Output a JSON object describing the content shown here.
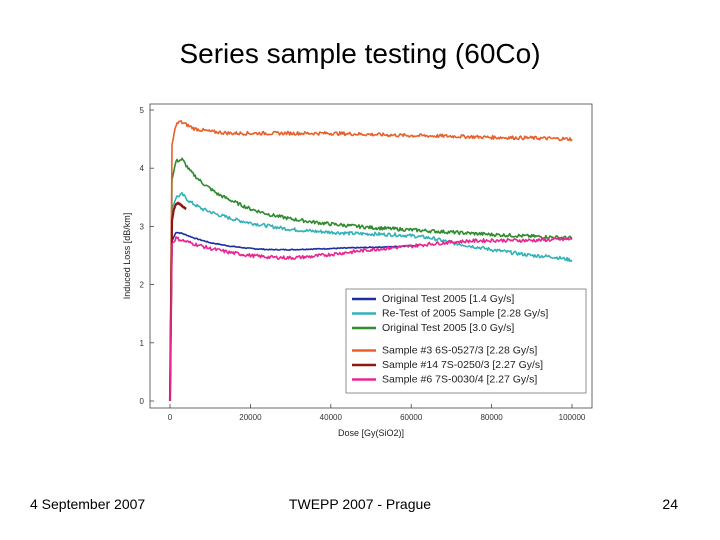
{
  "slide": {
    "title": "Series sample testing (60Co)",
    "footer_left": "4 September 2007",
    "footer_center": "TWEPP 2007 - Prague",
    "footer_right": "24"
  },
  "chart_data": {
    "type": "line",
    "xlabel": "Dose [Gy(SiO2)]",
    "ylabel": "Induced Loss [dB/km]",
    "xlim": [
      0,
      105000
    ],
    "ylim": [
      0,
      5
    ],
    "xticks": [
      0,
      20000,
      40000,
      60000,
      80000,
      100000
    ],
    "yticks": [
      0,
      1,
      2,
      3,
      4,
      5
    ],
    "legend_position": "bottom-right",
    "series": [
      {
        "name": "Original Test 2005 [1.4 Gy/s]",
        "color": "#1c2fa0",
        "x": [
          0,
          500,
          1500,
          3000,
          6000,
          10000,
          15000,
          20000,
          25000,
          30000,
          35000,
          40000,
          45000,
          50000,
          55000,
          60000,
          62000
        ],
        "y": [
          0,
          2.75,
          2.9,
          2.88,
          2.8,
          2.72,
          2.66,
          2.62,
          2.6,
          2.6,
          2.61,
          2.62,
          2.63,
          2.64,
          2.65,
          2.67,
          2.68
        ]
      },
      {
        "name": "Re-Test of 2005 Sample [2.28 Gy/s]",
        "color": "#33b2b8",
        "x": [
          0,
          500,
          1500,
          3000,
          5000,
          8000,
          12000,
          16000,
          20000,
          25000,
          30000,
          35000,
          40000,
          45000,
          50000,
          55000,
          60000,
          65000,
          70000,
          75000,
          80000,
          85000,
          90000,
          95000,
          100000
        ],
        "y": [
          0,
          3.3,
          3.5,
          3.55,
          3.42,
          3.3,
          3.2,
          3.12,
          3.06,
          3.0,
          2.95,
          2.92,
          2.9,
          2.88,
          2.87,
          2.86,
          2.84,
          2.8,
          2.72,
          2.66,
          2.6,
          2.55,
          2.5,
          2.48,
          2.42
        ]
      },
      {
        "name": "Original Test 2005 [3.0 Gy/s]",
        "color": "#2e8b2e",
        "x": [
          0,
          500,
          1500,
          3000,
          5000,
          8000,
          12000,
          16000,
          20000,
          25000,
          30000,
          35000,
          40000,
          50000,
          60000,
          70000,
          80000,
          90000,
          100000
        ],
        "y": [
          0,
          3.8,
          4.12,
          4.15,
          3.95,
          3.75,
          3.55,
          3.42,
          3.3,
          3.2,
          3.13,
          3.08,
          3.04,
          2.98,
          2.94,
          2.9,
          2.86,
          2.83,
          2.8
        ]
      },
      {
        "name": "Sample #3 6S-0527/3 [2.28 Gy/s]",
        "color": "#e8602a",
        "x": [
          0,
          500,
          1500,
          2500,
          4000,
          6000,
          10000,
          15000,
          20000,
          30000,
          40000,
          50000,
          60000,
          70000,
          80000,
          90000,
          100000
        ],
        "y": [
          0,
          4.4,
          4.75,
          4.8,
          4.75,
          4.68,
          4.63,
          4.6,
          4.6,
          4.6,
          4.6,
          4.58,
          4.56,
          4.55,
          4.53,
          4.52,
          4.5
        ]
      },
      {
        "name": "Sample #14 7S-0250/3 [2.27 Gy/s]",
        "color": "#8c1a12",
        "x": [
          0,
          500,
          1000,
          1500,
          2000,
          2500,
          3000,
          3500,
          4000
        ],
        "y": [
          0,
          3.1,
          3.3,
          3.38,
          3.4,
          3.38,
          3.35,
          3.33,
          3.3
        ]
      },
      {
        "name": "Sample #6 7S-0030/4 [2.27 Gy/s]",
        "color": "#e8268f",
        "x": [
          0,
          500,
          1500,
          3000,
          6000,
          10000,
          15000,
          20000,
          25000,
          30000,
          35000,
          40000,
          45000,
          50000,
          55000,
          60000,
          65000,
          70000,
          75000,
          80000,
          85000,
          90000,
          95000,
          100000
        ],
        "y": [
          0,
          2.7,
          2.8,
          2.76,
          2.7,
          2.62,
          2.55,
          2.5,
          2.47,
          2.46,
          2.48,
          2.52,
          2.56,
          2.6,
          2.63,
          2.66,
          2.7,
          2.73,
          2.75,
          2.76,
          2.76,
          2.76,
          2.77,
          2.78
        ]
      }
    ],
    "legend_groups": [
      3,
      3
    ]
  }
}
